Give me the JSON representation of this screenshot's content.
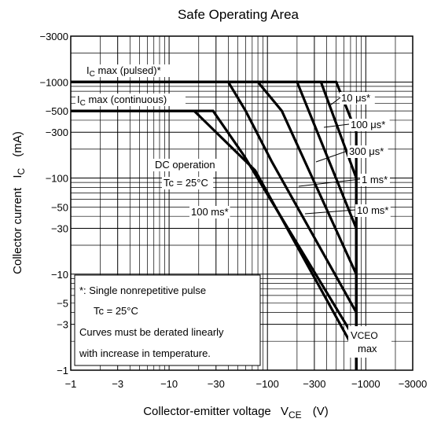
{
  "chart_data": {
    "type": "line",
    "title": "Safe Operating Area",
    "xlabel": "Collector-emitter voltage",
    "xlabel_symbol": "V",
    "xlabel_subscript": "CE",
    "xlabel_unit": "(V)",
    "ylabel": "Collector current",
    "ylabel_symbol": "I",
    "ylabel_subscript": "C",
    "ylabel_unit": "(mA)",
    "x_scale": "log",
    "y_scale": "log",
    "xlim": [
      -1,
      -3000
    ],
    "ylim": [
      -1,
      -3000
    ],
    "grid": true,
    "x_ticks": [
      {
        "value": -1,
        "label": "−1"
      },
      {
        "value": -3,
        "label": "−3"
      },
      {
        "value": -10,
        "label": "−10"
      },
      {
        "value": -30,
        "label": "−30"
      },
      {
        "value": -100,
        "label": "−100"
      },
      {
        "value": -300,
        "label": "−300"
      },
      {
        "value": -1000,
        "label": "−1000"
      },
      {
        "value": -3000,
        "label": "−3000"
      }
    ],
    "y_ticks": [
      {
        "value": -1,
        "label": "−1"
      },
      {
        "value": -3,
        "label": "−3"
      },
      {
        "value": -5,
        "label": "−5"
      },
      {
        "value": -10,
        "label": "−10"
      },
      {
        "value": -30,
        "label": "−30"
      },
      {
        "value": -50,
        "label": "−50"
      },
      {
        "value": -100,
        "label": "−100"
      },
      {
        "value": -300,
        "label": "−300"
      },
      {
        "value": -500,
        "label": "−500"
      },
      {
        "value": -1000,
        "label": "−1000"
      },
      {
        "value": -3000,
        "label": "−3000"
      }
    ],
    "series": [
      {
        "name": "10 μs*",
        "x": [
          -1,
          -500,
          -800,
          -800
        ],
        "y": [
          -1000,
          -1000,
          -300,
          -1
        ]
      },
      {
        "name": "100 μs*",
        "x": [
          -1,
          -350,
          -800,
          -800
        ],
        "y": [
          -1000,
          -1000,
          -100,
          -1
        ]
      },
      {
        "name": "300 μs*",
        "x": [
          -1,
          -200,
          -800,
          -800
        ],
        "y": [
          -1000,
          -1000,
          -30,
          -1
        ]
      },
      {
        "name": "1 ms*",
        "x": [
          -1,
          -80,
          -140,
          -800,
          -800
        ],
        "y": [
          -1000,
          -1000,
          -500,
          -10,
          -1
        ]
      },
      {
        "name": "10 ms*",
        "x": [
          -1,
          -40,
          -60,
          -110,
          -800,
          -800
        ],
        "y": [
          -1000,
          -1000,
          -500,
          -150,
          -4,
          -1
        ]
      },
      {
        "name": "100 ms*",
        "x": [
          -1,
          -28,
          -58,
          -800,
          -800
        ],
        "y": [
          -500,
          -500,
          -170,
          -2,
          -1
        ]
      },
      {
        "name": "DC operation",
        "x": [
          -1,
          -18,
          -75,
          -800,
          -800
        ],
        "y": [
          -500,
          -500,
          -120,
          -1.5,
          -1
        ]
      }
    ],
    "annotations": [
      {
        "text_main": "I",
        "text_sub": "C",
        "text_rest": " max (pulsed)*"
      },
      {
        "text_main": "I",
        "text_sub": "C",
        "text_rest": " max (continuous)"
      },
      {
        "text": "10 μs*"
      },
      {
        "text": "100 μs*"
      },
      {
        "text": "300 μs*"
      },
      {
        "text": "1 ms*"
      },
      {
        "text": "10 ms*"
      },
      {
        "text": "100 ms*"
      },
      {
        "text": "DC operation"
      },
      {
        "text": "Tc = 25°C"
      },
      {
        "text_main": "V",
        "text_sub": "CEO",
        "text_line2": "max"
      }
    ],
    "note_box": {
      "lines": [
        "*: Single nonrepetitive pulse",
        "Tc = 25°C",
        "Curves must be derated linearly",
        "with increase in temperature."
      ]
    }
  }
}
